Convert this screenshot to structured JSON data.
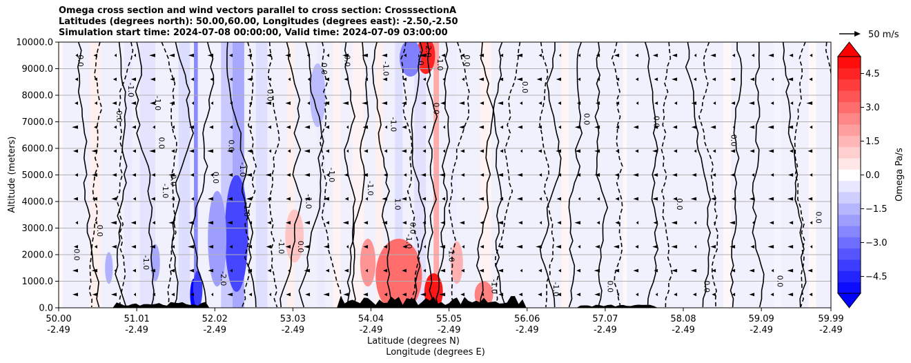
{
  "chart_data": {
    "type": "contour",
    "title_lines": [
      "Omega cross section and wind vectors parallel to cross section: CrosssectionA",
      "Latitudes (degrees north): 50.00,60.00, Longitudes (degrees east): -2.50,-2.50",
      "Simulation start time: 2024-07-08 00:00:00, Valid time: 2024-07-09 03:00:00"
    ],
    "xlabel_lines": [
      "Latitude (degrees N)",
      "Longitude (degrees E)"
    ],
    "ylabel": "Altitude (meters)",
    "xlim": [
      50.0,
      59.99
    ],
    "ylim": [
      0,
      10000
    ],
    "xticks": [
      {
        "lat": "50.00",
        "lon": "-2.49",
        "value": 50.0
      },
      {
        "lat": "51.01",
        "lon": "-2.49",
        "value": 51.01
      },
      {
        "lat": "52.02",
        "lon": "-2.49",
        "value": 52.02
      },
      {
        "lat": "53.03",
        "lon": "-2.49",
        "value": 53.03
      },
      {
        "lat": "54.04",
        "lon": "-2.49",
        "value": 54.04
      },
      {
        "lat": "55.05",
        "lon": "-2.49",
        "value": 55.05
      },
      {
        "lat": "56.06",
        "lon": "-2.49",
        "value": 56.06
      },
      {
        "lat": "57.07",
        "lon": "-2.49",
        "value": 57.07
      },
      {
        "lat": "58.08",
        "lon": "-2.49",
        "value": 58.08
      },
      {
        "lat": "59.09",
        "lon": "-2.49",
        "value": 59.09
      },
      {
        "lat": "59.99",
        "lon": "-2.49",
        "value": 59.99
      }
    ],
    "yticks": [
      {
        "label": "0.0",
        "value": 0
      },
      {
        "label": "1000.0",
        "value": 1000
      },
      {
        "label": "2000.0",
        "value": 2000
      },
      {
        "label": "3000.0",
        "value": 3000
      },
      {
        "label": "4000.0",
        "value": 4000
      },
      {
        "label": "5000.0",
        "value": 5000
      },
      {
        "label": "6000.0",
        "value": 6000
      },
      {
        "label": "7000.0",
        "value": 7000
      },
      {
        "label": "8000.0",
        "value": 8000
      },
      {
        "label": "9000.0",
        "value": 9000
      },
      {
        "label": "10000.0",
        "value": 10000
      }
    ],
    "colorbar": {
      "label": "Omega Pa/s",
      "range": [
        -5.25,
        5.25
      ],
      "step": 0.5,
      "extend": "both",
      "ticks": [
        {
          "label": "4.5",
          "value": 4.5
        },
        {
          "label": "3.0",
          "value": 3.0
        },
        {
          "label": "1.5",
          "value": 1.5
        },
        {
          "label": "0.0",
          "value": 0.0
        },
        {
          "label": "−1.5",
          "value": -1.5
        },
        {
          "label": "−3.0",
          "value": -3.0
        },
        {
          "label": "−4.5",
          "value": -4.5
        }
      ]
    },
    "quiver_key": {
      "label": "50 m/s",
      "value": 50
    },
    "contour_labels": [
      {
        "text": "0.0",
        "lat": 50.25,
        "alt": 9300
      },
      {
        "text": "0.0",
        "lat": 50.5,
        "alt": 2900
      },
      {
        "text": "0.0",
        "lat": 50.2,
        "alt": 2000
      },
      {
        "text": "-1.0",
        "lat": 50.9,
        "alt": 8200
      },
      {
        "text": "0.0",
        "lat": 50.75,
        "alt": 7200
      },
      {
        "text": "-1.0",
        "lat": 51.25,
        "alt": 7700
      },
      {
        "text": "0.0",
        "lat": 51.3,
        "alt": 6200
      },
      {
        "text": "-1.0",
        "lat": 51.1,
        "alt": 1700
      },
      {
        "text": "0.0",
        "lat": 51.45,
        "alt": 4800
      },
      {
        "text": "-1.0",
        "lat": 51.35,
        "alt": 4400
      },
      {
        "text": "0.0",
        "lat": 52.0,
        "alt": 4900
      },
      {
        "text": "0.0",
        "lat": 52.2,
        "alt": 6100
      },
      {
        "text": "-1.0",
        "lat": 52.35,
        "alt": 5200
      },
      {
        "text": "-1.0",
        "lat": 52.4,
        "alt": 3700
      },
      {
        "text": "-2.0",
        "lat": 52.1,
        "alt": 1100
      },
      {
        "text": "0.0",
        "lat": 52.7,
        "alt": 8000
      },
      {
        "text": "-1.0",
        "lat": 52.85,
        "alt": 2300
      },
      {
        "text": "-1.0",
        "lat": 53.2,
        "alt": 4000
      },
      {
        "text": "0.0",
        "lat": 53.1,
        "alt": 2300
      },
      {
        "text": "0.0",
        "lat": 53.4,
        "alt": 9000
      },
      {
        "text": "-1.0",
        "lat": 53.5,
        "alt": 5000
      },
      {
        "text": "0.0",
        "lat": 53.7,
        "alt": 9300
      },
      {
        "text": "-1.0",
        "lat": 54.2,
        "alt": 9000
      },
      {
        "text": "-1.0",
        "lat": 54.3,
        "alt": 6900
      },
      {
        "text": "-1.0",
        "lat": 54.0,
        "alt": 4500
      },
      {
        "text": "1.0",
        "lat": 54.35,
        "alt": 3900
      },
      {
        "text": "-1.0",
        "lat": 54.5,
        "alt": 2500
      },
      {
        "text": "-1.0",
        "lat": 54.65,
        "alt": 9400
      },
      {
        "text": "-2.0",
        "lat": 54.75,
        "alt": 9700
      },
      {
        "text": "0.0",
        "lat": 54.55,
        "alt": 3000
      },
      {
        "text": "-1.0",
        "lat": 54.9,
        "alt": 9200
      },
      {
        "text": "0.0",
        "lat": 54.85,
        "alt": 7500
      },
      {
        "text": "0.0",
        "lat": 55.25,
        "alt": 9300
      },
      {
        "text": "-1.0",
        "lat": 55.05,
        "alt": 2000
      },
      {
        "text": "-1.0",
        "lat": 55.6,
        "alt": 800
      },
      {
        "text": "0.0",
        "lat": 56.0,
        "alt": 8300
      },
      {
        "text": "-1.0",
        "lat": 56.4,
        "alt": 700
      },
      {
        "text": "0.0",
        "lat": 56.8,
        "alt": 7100
      },
      {
        "text": "0.0",
        "lat": 57.7,
        "alt": 7000
      },
      {
        "text": "0.0",
        "lat": 57.1,
        "alt": 800
      },
      {
        "text": "0.0",
        "lat": 58.0,
        "alt": 3900
      },
      {
        "text": "0.0",
        "lat": 58.35,
        "alt": 800
      },
      {
        "text": "0.0",
        "lat": 58.7,
        "alt": 6300
      },
      {
        "text": "0.0",
        "lat": 59.3,
        "alt": 1000
      },
      {
        "text": "0.0",
        "lat": 59.8,
        "alt": 3400
      }
    ]
  }
}
